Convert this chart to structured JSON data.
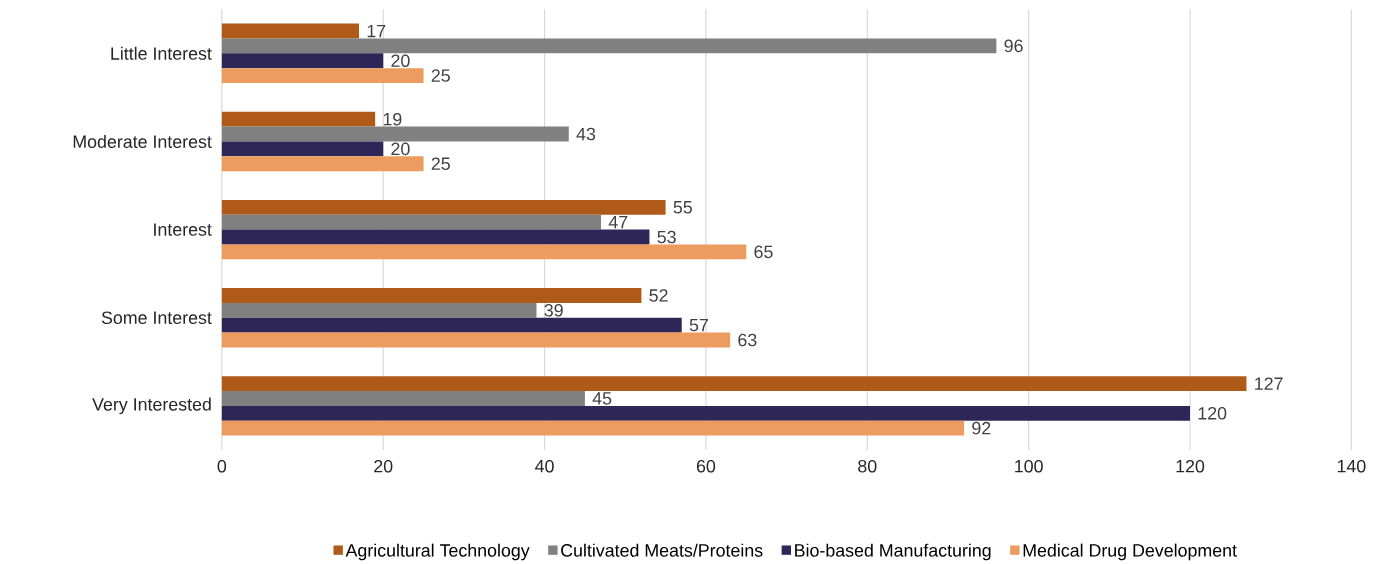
{
  "chart_data": {
    "type": "bar",
    "orientation": "horizontal",
    "categories": [
      "Little Interest",
      "Moderate Interest",
      "Interest",
      "Some Interest",
      "Very Interested"
    ],
    "series": [
      {
        "name": "Agricultural Technology",
        "color": "#b05a1a",
        "values": [
          17,
          19,
          55,
          52,
          127
        ]
      },
      {
        "name": "Cultivated Meats/Proteins",
        "color": "#808080",
        "values": [
          96,
          43,
          47,
          39,
          45
        ]
      },
      {
        "name": "Bio-based Manufacturing",
        "color": "#2e2656",
        "values": [
          20,
          20,
          53,
          57,
          120
        ]
      },
      {
        "name": "Medical Drug Development",
        "color": "#ec9c5e",
        "values": [
          25,
          25,
          65,
          63,
          92
        ]
      }
    ],
    "xlim": [
      0,
      140
    ],
    "xticks": [
      0,
      20,
      40,
      60,
      80,
      100,
      120,
      140
    ],
    "grid": "x",
    "legend": "bottom",
    "data_labels": true
  }
}
